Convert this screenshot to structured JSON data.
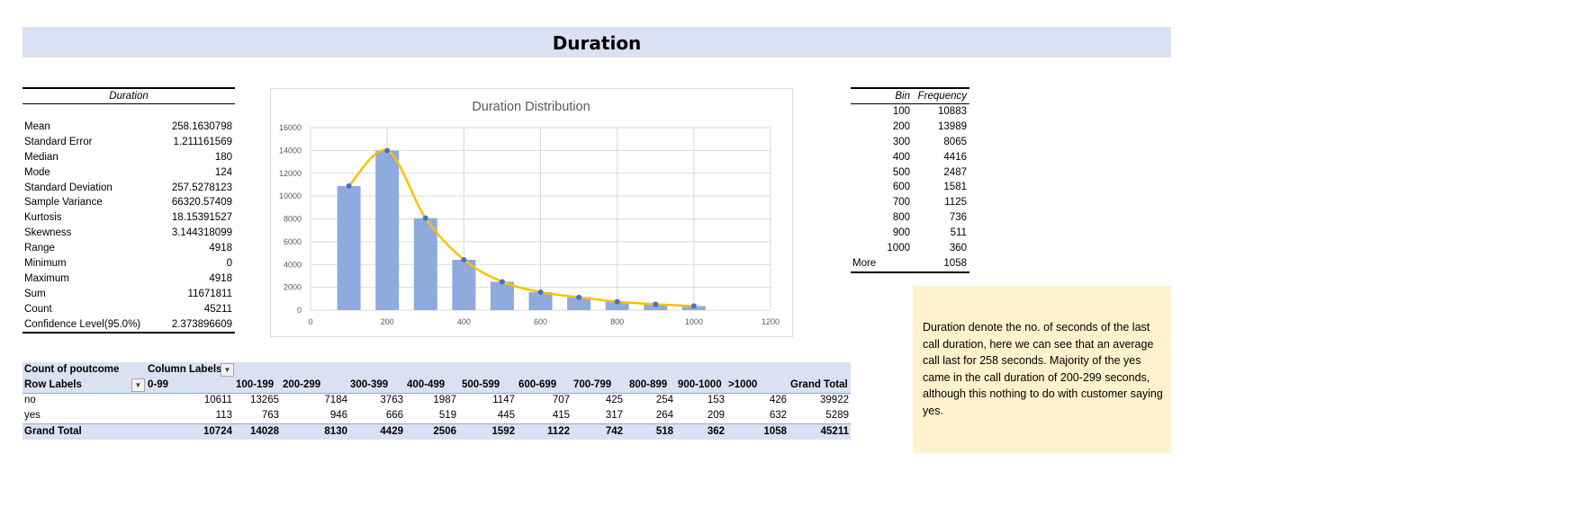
{
  "title": "Duration",
  "stats": {
    "header": "Duration",
    "rows": [
      {
        "label": "Mean",
        "value": "258.1630798"
      },
      {
        "label": "Standard Error",
        "value": "1.211161569"
      },
      {
        "label": "Median",
        "value": "180"
      },
      {
        "label": "Mode",
        "value": "124"
      },
      {
        "label": "Standard Deviation",
        "value": "257.5278123"
      },
      {
        "label": "Sample Variance",
        "value": "66320.57409"
      },
      {
        "label": "Kurtosis",
        "value": "18.15391527"
      },
      {
        "label": "Skewness",
        "value": "3.144318099"
      },
      {
        "label": "Range",
        "value": "4918"
      },
      {
        "label": "Minimum",
        "value": "0"
      },
      {
        "label": "Maximum",
        "value": "4918"
      },
      {
        "label": "Sum",
        "value": "11671811"
      },
      {
        "label": "Count",
        "value": "45211"
      },
      {
        "label": "Confidence Level(95.0%)",
        "value": "2.373896609"
      }
    ]
  },
  "bins": {
    "header_bin": "Bin",
    "header_freq": "Frequency",
    "rows": [
      {
        "bin": "100",
        "freq": "10883"
      },
      {
        "bin": "200",
        "freq": "13989"
      },
      {
        "bin": "300",
        "freq": "8065"
      },
      {
        "bin": "400",
        "freq": "4416"
      },
      {
        "bin": "500",
        "freq": "2487"
      },
      {
        "bin": "600",
        "freq": "1581"
      },
      {
        "bin": "700",
        "freq": "1125"
      },
      {
        "bin": "800",
        "freq": "736"
      },
      {
        "bin": "900",
        "freq": "511"
      },
      {
        "bin": "1000",
        "freq": "360"
      }
    ],
    "more_label": "More",
    "more_freq": "1058"
  },
  "note": "Duration denote the no. of seconds of the last call duration, here we can see that an average call last for 258 seconds. Majority of the yes came in the call duration of 200-299 seconds, although this nothing to do with customer saying yes.",
  "pivot": {
    "count_label": "Count of poutcome",
    "column_labels": "Column Labels",
    "row_labels": "Row Labels",
    "columns": [
      "0-99",
      "100-199",
      "200-299",
      "300-399",
      "400-499",
      "500-599",
      "600-699",
      "700-799",
      "800-899",
      "900-1000",
      ">1000",
      "Grand Total"
    ],
    "rows": [
      {
        "label": "no",
        "values": [
          "10611",
          "13265",
          "7184",
          "3763",
          "1987",
          "1147",
          "707",
          "425",
          "254",
          "153",
          "426",
          "39922"
        ]
      },
      {
        "label": "yes",
        "values": [
          "113",
          "763",
          "946",
          "666",
          "519",
          "445",
          "415",
          "317",
          "264",
          "209",
          "632",
          "5289"
        ]
      }
    ],
    "total": {
      "label": "Grand Total",
      "values": [
        "10724",
        "14028",
        "8130",
        "4429",
        "2506",
        "1592",
        "1122",
        "742",
        "518",
        "362",
        "1058",
        "45211"
      ]
    }
  },
  "chart_data": {
    "type": "bar",
    "title": "Duration Distribution",
    "x": [
      100,
      200,
      300,
      400,
      500,
      600,
      700,
      800,
      900,
      1000
    ],
    "values": [
      10883,
      13989,
      8065,
      4416,
      2487,
      1581,
      1125,
      736,
      511,
      360
    ],
    "line": true,
    "xlim": [
      0,
      1200
    ],
    "ylim": [
      0,
      16000
    ],
    "xticks": [
      0,
      200,
      400,
      600,
      800,
      1000,
      1200
    ],
    "yticks": [
      0,
      2000,
      4000,
      6000,
      8000,
      10000,
      12000,
      14000,
      16000
    ],
    "grid": true,
    "colors": {
      "bar": "#8faadc",
      "line": "#ffc000",
      "marker": "#4472c4",
      "grid": "#d9d9d9"
    }
  }
}
